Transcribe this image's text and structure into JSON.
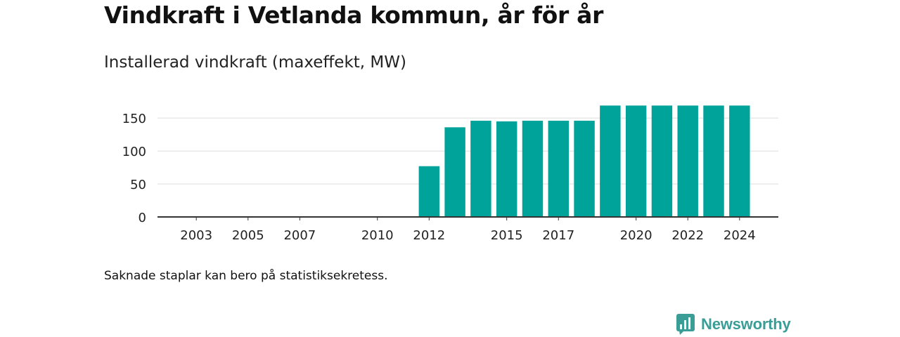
{
  "header": {
    "title": "Vindkraft i Vetlanda kommun, år för år",
    "subtitle": "Installerad vindkraft (maxeffekt, MW)"
  },
  "footer": {
    "note": "Saknade staplar kan bero på statistiksekretess.",
    "brand": "Newsworthy"
  },
  "colors": {
    "bar": "#00a39a",
    "grid": "#dcdcdc",
    "axis": "#333333",
    "brand": "#3a9e96"
  },
  "chart_data": {
    "type": "bar",
    "categories": [
      "2012",
      "2013",
      "2014",
      "2015",
      "2016",
      "2017",
      "2018",
      "2019",
      "2020",
      "2021",
      "2022",
      "2023",
      "2024"
    ],
    "values": [
      77,
      136,
      146,
      145,
      146,
      146,
      146,
      169,
      169,
      169,
      169,
      169,
      169
    ],
    "x_range": [
      2001.5,
      2025.5
    ],
    "x_tick_labels": [
      "2003",
      "2005",
      "2007",
      "2010",
      "2012",
      "2015",
      "2017",
      "2020",
      "2022",
      "2024"
    ],
    "y_ticks": [
      0,
      50,
      100,
      150
    ],
    "ylim": [
      0,
      180
    ],
    "grid": true,
    "xlabel": "",
    "ylabel": ""
  }
}
